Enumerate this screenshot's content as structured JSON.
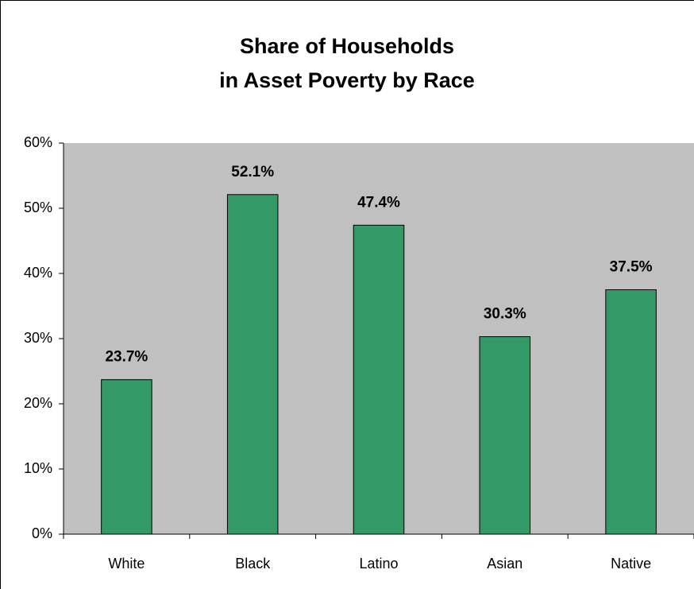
{
  "chart_data": {
    "type": "bar",
    "title": [
      "Share of Households",
      "in Asset Poverty by Race"
    ],
    "categories": [
      "White",
      "Black",
      "Latino",
      "Asian",
      "Native"
    ],
    "values": [
      23.7,
      52.1,
      47.4,
      30.3,
      37.5
    ],
    "value_labels": [
      "23.7%",
      "52.1%",
      "47.4%",
      "30.3%",
      "37.5%"
    ],
    "color": "#339966",
    "ylim": [
      0,
      60
    ],
    "yticks": [
      {
        "value": 0,
        "label": "0%"
      },
      {
        "value": 10,
        "label": "10%"
      },
      {
        "value": 20,
        "label": "20%"
      },
      {
        "value": 30,
        "label": "30%"
      },
      {
        "value": 40,
        "label": "40%"
      },
      {
        "value": 50,
        "label": "50%"
      },
      {
        "value": 60,
        "label": "60%"
      }
    ],
    "plot_background": "#c0c0c0"
  }
}
